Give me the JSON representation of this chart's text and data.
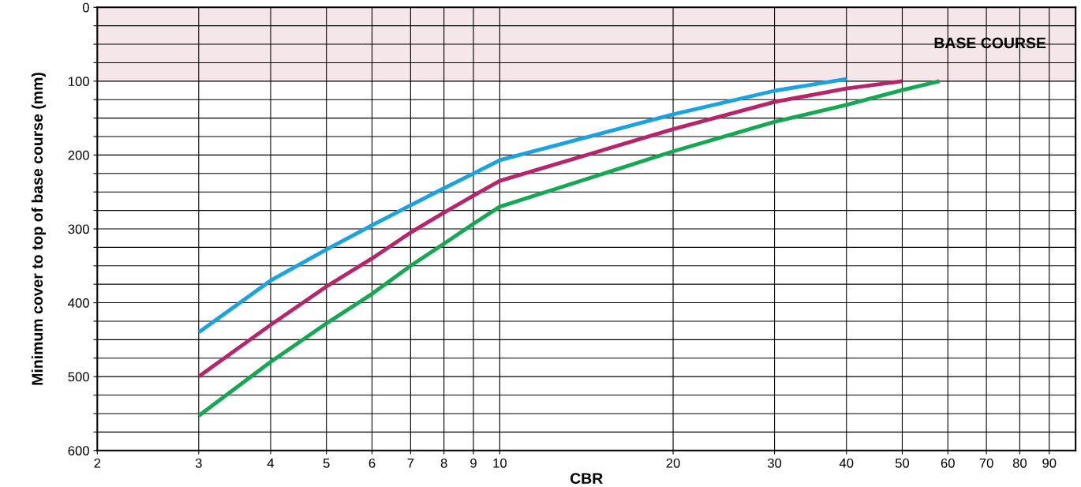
{
  "chart_data": {
    "type": "line",
    "xlabel": "CBR",
    "ylabel": "Minimum cover to top of base course (mm)",
    "log": "x",
    "xlim": [
      2,
      100
    ],
    "xticks": [
      2,
      3,
      4,
      5,
      6,
      7,
      8,
      9,
      10,
      20,
      30,
      40,
      50,
      60,
      70,
      80,
      90
    ],
    "ylim": [
      600,
      0
    ],
    "yticks": [
      0,
      {
        "value": 25,
        "label": null
      },
      {
        "value": 50,
        "label": null
      },
      {
        "value": 75,
        "label": null
      },
      100,
      {
        "value": 125,
        "label": null
      },
      {
        "value": 150,
        "label": null
      },
      {
        "value": 175,
        "label": null
      },
      200,
      {
        "value": 225,
        "label": null
      },
      {
        "value": 250,
        "label": null
      },
      {
        "value": 275,
        "label": null
      },
      300,
      {
        "value": 325,
        "label": null
      },
      {
        "value": 350,
        "label": null
      },
      {
        "value": 375,
        "label": null
      },
      400,
      {
        "value": 425,
        "label": null
      },
      {
        "value": 450,
        "label": null
      },
      {
        "value": 475,
        "label": null
      },
      500,
      {
        "value": 525,
        "label": null
      },
      {
        "value": 550,
        "label": null
      },
      {
        "value": 575,
        "label": null
      },
      600
    ],
    "grid": true,
    "line_style": "solid",
    "marker": "none",
    "bands": [
      {
        "axis": "y",
        "from": 0,
        "to": 100,
        "label": "BASE COURSE",
        "color": "#f5e6ea"
      }
    ],
    "series": [
      {
        "color": "#1aa3e0",
        "x": [
          3,
          4,
          5,
          6,
          7,
          8,
          9,
          10,
          20,
          30,
          40
        ],
        "values": [
          440,
          370,
          328,
          295,
          268,
          245,
          225,
          207,
          145,
          113,
          97
        ]
      },
      {
        "color": "#b82469",
        "x": [
          3,
          4,
          5,
          6,
          7,
          8,
          9,
          10,
          20,
          30,
          40,
          50
        ],
        "values": [
          500,
          430,
          378,
          340,
          305,
          278,
          255,
          235,
          165,
          128,
          110,
          100
        ]
      },
      {
        "color": "#13a851",
        "x": [
          3,
          4,
          5,
          6,
          7,
          8,
          9,
          10,
          20,
          30,
          40,
          50,
          58
        ],
        "values": [
          553,
          480,
          428,
          388,
          350,
          320,
          293,
          270,
          195,
          155,
          132,
          112,
          100
        ]
      }
    ]
  }
}
